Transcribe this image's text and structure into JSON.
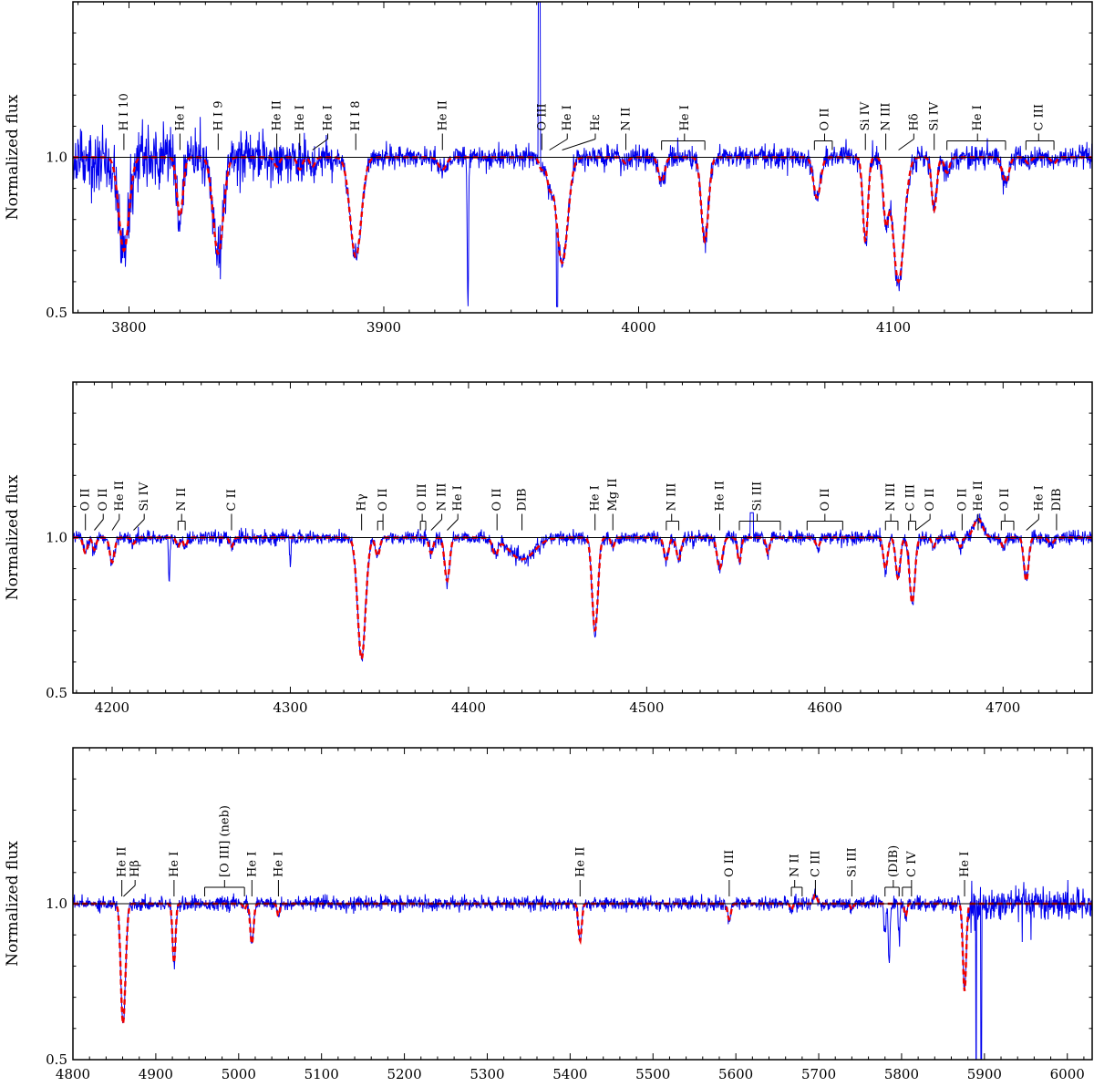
{
  "chart_data": [
    {
      "type": "line",
      "panel": "top",
      "xlim": [
        3778,
        4178
      ],
      "ylim": [
        0.5,
        1.5
      ],
      "xticks": [
        3800,
        3900,
        4000,
        4100
      ],
      "yticks": [
        0.5,
        1.0
      ],
      "ytick_labels": [
        "0.5",
        "1.0"
      ],
      "ylabel": "Normalized flux",
      "reference_line": 1.0,
      "grid": false,
      "series": [
        {
          "role": "observed",
          "color": "#0000ee",
          "style": "solid"
        },
        {
          "role": "model",
          "color": "#ee0000",
          "style": "dashed"
        }
      ],
      "lines": [
        {
          "center": 3798,
          "depth": 0.3,
          "width": 2.0,
          "lbl": "H I 10"
        },
        {
          "center": 3820,
          "depth": 0.19,
          "width": 1.2,
          "lbl": "He I"
        },
        {
          "center": 3835,
          "depth": 0.31,
          "width": 2.0,
          "lbl": "H I 9"
        },
        {
          "center": 3858,
          "depth": 0.03,
          "width": 1.0,
          "lbl": "He II"
        },
        {
          "center": 3867,
          "depth": 0.04,
          "width": 1.0,
          "lbl": "He I"
        },
        {
          "center": 3872,
          "depth": 0.03,
          "width": 1.0,
          "lbl": "He I"
        },
        {
          "center": 3889,
          "depth": 0.32,
          "width": 2.2,
          "lbl": "H I 8"
        },
        {
          "center": 3923,
          "depth": 0.04,
          "width": 1.5,
          "lbl": "He II"
        },
        {
          "center": 3933,
          "depth": 0.5,
          "width": 0.25,
          "obs_only": true
        },
        {
          "center": 3962,
          "depth": 0.04,
          "width": 1.0,
          "lbl": "O III"
        },
        {
          "center": 3965,
          "depth": 0.08,
          "width": 1.0,
          "lbl": "He I"
        },
        {
          "center": 3970,
          "depth": 0.34,
          "width": 2.2,
          "lbl": "Hε"
        },
        {
          "center": 3995,
          "depth": 0.02,
          "width": 1.0,
          "lbl": "N II"
        },
        {
          "center": 4009,
          "depth": 0.08,
          "width": 1.2
        },
        {
          "center": 4026,
          "depth": 0.27,
          "width": 1.4,
          "lbl": "He I"
        },
        {
          "center": 4070,
          "depth": 0.13,
          "width": 1.4,
          "lbl": "O II"
        },
        {
          "center": 4089,
          "depth": 0.27,
          "width": 1.0,
          "lbl": "Si IV"
        },
        {
          "center": 4097,
          "depth": 0.19,
          "width": 1.0,
          "lbl": "N III"
        },
        {
          "center": 4102,
          "depth": 0.4,
          "width": 2.2,
          "lbl": "Hδ"
        },
        {
          "center": 4116,
          "depth": 0.17,
          "width": 1.0,
          "lbl": "Si IV"
        },
        {
          "center": 4121,
          "depth": 0.05,
          "width": 1.0
        },
        {
          "center": 4144,
          "depth": 0.08,
          "width": 1.3,
          "lbl": "He I"
        },
        {
          "center": 4153,
          "depth": 0.02,
          "width": 1.0
        },
        {
          "center": 4163,
          "depth": 0.02,
          "width": 1.0,
          "lbl": "C III"
        }
      ],
      "spikes": [
        {
          "x": 3961,
          "y": 1.5,
          "w": 0.5
        },
        {
          "x": 3968,
          "y": 0.52,
          "w": 0.25
        }
      ],
      "labels": [
        {
          "text": "H I 10",
          "x": 3798,
          "tick": "straight"
        },
        {
          "text": "He I",
          "x": 3820,
          "tick": "straight"
        },
        {
          "text": "H I 9",
          "x": 3835,
          "tick": "straight"
        },
        {
          "text": "He II",
          "x": 3858,
          "tick": "straight"
        },
        {
          "text": "He I",
          "x": 3867,
          "tick": "straight"
        },
        {
          "text": "He I",
          "x": 3878,
          "tick": "slant",
          "target": 3872
        },
        {
          "text": "H I 8",
          "x": 3889,
          "tick": "straight"
        },
        {
          "text": "He II",
          "x": 3923,
          "tick": "straight"
        },
        {
          "text": "O III",
          "x": 3962,
          "tick": "straight"
        },
        {
          "text": "He I",
          "x": 3972,
          "tick": "slant",
          "target": 3965
        },
        {
          "text": "Hε",
          "x": 3983,
          "tick": "slant",
          "target": 3970
        },
        {
          "text": "N II",
          "x": 3995,
          "tick": "straight"
        },
        {
          "text": "He I",
          "x": 4018,
          "tick": "bracket",
          "positions": [
            4009,
            4026
          ]
        },
        {
          "text": "O II",
          "x": 4073,
          "tick": "bracket",
          "positions": [
            4069,
            4076
          ]
        },
        {
          "text": "Si IV",
          "x": 4089,
          "tick": "straight"
        },
        {
          "text": "N III",
          "x": 4097,
          "tick": "straight"
        },
        {
          "text": "Hδ",
          "x": 4108,
          "tick": "slant",
          "target": 4102
        },
        {
          "text": "Si IV",
          "x": 4116,
          "tick": "straight"
        },
        {
          "text": "He I",
          "x": 4133,
          "tick": "bracket",
          "positions": [
            4121,
            4144
          ]
        },
        {
          "text": "C III",
          "x": 4157,
          "tick": "bracket",
          "positions": [
            4152,
            4163
          ]
        }
      ]
    },
    {
      "type": "line",
      "panel": "middle",
      "xlim": [
        4178,
        4750
      ],
      "ylim": [
        0.5,
        1.5
      ],
      "xticks": [
        4200,
        4300,
        4400,
        4500,
        4600,
        4700
      ],
      "yticks": [
        0.5,
        1.0
      ],
      "ytick_labels": [
        "0.5",
        "1.0"
      ],
      "ylabel": "Normalized flux",
      "reference_line": 1.0,
      "grid": false,
      "series": [
        {
          "role": "observed",
          "color": "#0000ee",
          "style": "solid"
        },
        {
          "role": "model",
          "color": "#ee0000",
          "style": "dashed"
        }
      ],
      "lines": [
        {
          "center": 4185,
          "depth": 0.05,
          "width": 1.2,
          "lbl": "O II"
        },
        {
          "center": 4190,
          "depth": 0.04,
          "width": 1.0,
          "lbl": "O II"
        },
        {
          "center": 4200,
          "depth": 0.08,
          "width": 1.3,
          "lbl": "He II"
        },
        {
          "center": 4212,
          "depth": 0.02,
          "width": 1.0,
          "lbl": "Si IV"
        },
        {
          "center": 4232,
          "depth": 0.15,
          "width": 0.4,
          "obs_only": true
        },
        {
          "center": 4237,
          "depth": 0.03,
          "width": 1.0,
          "lbl": "N II"
        },
        {
          "center": 4241,
          "depth": 0.03,
          "width": 1.0
        },
        {
          "center": 4267,
          "depth": 0.03,
          "width": 1.0,
          "lbl": "C II"
        },
        {
          "center": 4300,
          "depth": 0.08,
          "width": 0.4,
          "obs_only": true
        },
        {
          "center": 4340,
          "depth": 0.39,
          "width": 2.2,
          "lbl": "Hγ"
        },
        {
          "center": 4349,
          "depth": 0.06,
          "width": 1.2,
          "lbl": "O II"
        },
        {
          "center": 4379,
          "depth": 0.05,
          "width": 1.2,
          "lbl": "N III"
        },
        {
          "center": 4388,
          "depth": 0.14,
          "width": 1.4,
          "lbl": "He I"
        },
        {
          "center": 4415,
          "depth": 0.05,
          "width": 1.5,
          "lbl": "O II"
        },
        {
          "center": 4430,
          "depth": 0.07,
          "width": 7.0,
          "lbl": "DIB"
        },
        {
          "center": 4471,
          "depth": 0.3,
          "width": 1.6,
          "lbl": "He I"
        },
        {
          "center": 4481,
          "depth": 0.03,
          "width": 1.0,
          "lbl": "Mg II"
        },
        {
          "center": 4511,
          "depth": 0.07,
          "width": 1.3,
          "lbl": "N III"
        },
        {
          "center": 4518,
          "depth": 0.07,
          "width": 1.3
        },
        {
          "center": 4541,
          "depth": 0.1,
          "width": 1.5,
          "lbl": "He II"
        },
        {
          "center": 4552,
          "depth": 0.08,
          "width": 1.0,
          "lbl": "Si III"
        },
        {
          "center": 4568,
          "depth": 0.05,
          "width": 1.0
        },
        {
          "center": 4596,
          "depth": 0.03,
          "width": 1.2,
          "lbl": "O II"
        },
        {
          "center": 4634,
          "depth": 0.1,
          "width": 1.2,
          "lbl": "N III"
        },
        {
          "center": 4641,
          "depth": 0.13,
          "width": 1.3
        },
        {
          "center": 4649,
          "depth": 0.21,
          "width": 1.5,
          "lbl": "C III"
        },
        {
          "center": 4661,
          "depth": 0.03,
          "width": 1.0,
          "lbl": "O II"
        },
        {
          "center": 4676,
          "depth": 0.03,
          "width": 1.0,
          "lbl": "O II"
        },
        {
          "center": 4686,
          "depth": -0.06,
          "width": 2.5,
          "lbl": "He II"
        },
        {
          "center": 4700,
          "depth": 0.03,
          "width": 1.0,
          "lbl": "O II"
        },
        {
          "center": 4713,
          "depth": 0.14,
          "width": 1.3,
          "lbl": "He I"
        },
        {
          "center": 4727,
          "depth": 0.02,
          "width": 1.5,
          "lbl": "DIB"
        }
      ],
      "spikes": [
        {
          "x": 4559,
          "y": 1.08,
          "w": 1.0
        }
      ],
      "labels": [
        {
          "text": "O II",
          "x": 4185,
          "tick": "straight"
        },
        {
          "text": "O II",
          "x": 4195,
          "tick": "slant",
          "target": 4190
        },
        {
          "text": "He II",
          "x": 4204,
          "tick": "slant",
          "target": 4200
        },
        {
          "text": "Si IV",
          "x": 4218,
          "tick": "slant",
          "target": 4212
        },
        {
          "text": "N II",
          "x": 4239,
          "tick": "bracket",
          "positions": [
            4237,
            4241
          ]
        },
        {
          "text": "C II",
          "x": 4267,
          "tick": "straight"
        },
        {
          "text": "Hγ",
          "x": 4340,
          "tick": "straight"
        },
        {
          "text": "O II",
          "x": 4352,
          "tick": "bracket",
          "positions": [
            4349,
            4352
          ]
        },
        {
          "text": "O III",
          "x": 4374,
          "tick": "bracket",
          "positions": [
            4373,
            4376
          ]
        },
        {
          "text": "N III",
          "x": 4385,
          "tick": "slant",
          "target": 4379
        },
        {
          "text": "He I",
          "x": 4394,
          "tick": "slant",
          "target": 4388
        },
        {
          "text": "O II",
          "x": 4416,
          "tick": "straight"
        },
        {
          "text": "DIB",
          "x": 4430,
          "tick": "straight"
        },
        {
          "text": "He I",
          "x": 4471,
          "tick": "straight"
        },
        {
          "text": "Mg II",
          "x": 4481,
          "tick": "straight"
        },
        {
          "text": "N III",
          "x": 4514,
          "tick": "bracket",
          "positions": [
            4511,
            4518
          ]
        },
        {
          "text": "He II",
          "x": 4541,
          "tick": "straight"
        },
        {
          "text": "Si III",
          "x": 4562,
          "tick": "bracket",
          "positions": [
            4552,
            4575
          ]
        },
        {
          "text": "O II",
          "x": 4600,
          "tick": "bracket",
          "positions": [
            4590,
            4610
          ]
        },
        {
          "text": "N III",
          "x": 4637,
          "tick": "bracket",
          "positions": [
            4634,
            4641
          ]
        },
        {
          "text": "C III",
          "x": 4648,
          "tick": "bracket",
          "positions": [
            4647,
            4651
          ]
        },
        {
          "text": "O II",
          "x": 4659,
          "tick": "slant",
          "target": 4651
        },
        {
          "text": "O II",
          "x": 4677,
          "tick": "straight"
        },
        {
          "text": "He II",
          "x": 4686,
          "tick": "straight"
        },
        {
          "text": "O II",
          "x": 4701,
          "tick": "bracket",
          "positions": [
            4699,
            4706
          ]
        },
        {
          "text": "He I",
          "x": 4720,
          "tick": "slant",
          "target": 4713
        },
        {
          "text": "DIB",
          "x": 4730,
          "tick": "straight"
        }
      ]
    },
    {
      "type": "line",
      "panel": "bottom",
      "xlim": [
        4800,
        6030
      ],
      "ylim": [
        0.5,
        1.5
      ],
      "xticks": [
        4800,
        4900,
        5000,
        5100,
        5200,
        5300,
        5400,
        5500,
        5600,
        5700,
        5800,
        5900,
        6000
      ],
      "yticks": [
        0.5,
        1.0
      ],
      "ytick_labels": [
        "0.5",
        "1.0"
      ],
      "ylabel": "Normalized flux",
      "reference_line": 1.0,
      "grid": false,
      "series": [
        {
          "role": "observed",
          "color": "#0000ee",
          "style": "solid"
        },
        {
          "role": "model",
          "color": "#ee0000",
          "style": "dashed"
        }
      ],
      "lines": [
        {
          "center": 4859,
          "depth": 0.08,
          "width": 2.0,
          "lbl": "He II"
        },
        {
          "center": 4861,
          "depth": 0.33,
          "width": 2.8,
          "lbl": "Hβ"
        },
        {
          "center": 4922,
          "depth": 0.19,
          "width": 1.8,
          "lbl": "He I"
        },
        {
          "center": 5007,
          "depth": 0.02,
          "width": 1.5,
          "model_only": true
        },
        {
          "center": 5016,
          "depth": 0.13,
          "width": 2.0,
          "lbl": "He I"
        },
        {
          "center": 5048,
          "depth": 0.04,
          "width": 1.5,
          "lbl": "He I"
        },
        {
          "center": 5412,
          "depth": 0.12,
          "width": 2.0,
          "lbl": "He II"
        },
        {
          "center": 5592,
          "depth": 0.05,
          "width": 2.0,
          "lbl": "O III"
        },
        {
          "center": 5667,
          "depth": 0.02,
          "width": 1.5,
          "lbl": "N II"
        },
        {
          "center": 5696,
          "depth": -0.03,
          "width": 2.0,
          "lbl": "C III"
        },
        {
          "center": 5740,
          "depth": 0.02,
          "width": 1.5,
          "lbl": "Si III"
        },
        {
          "center": 5780,
          "depth": 0.1,
          "width": 1.2,
          "obs_only": true
        },
        {
          "center": 5785,
          "depth": 0.2,
          "width": 1.0,
          "obs_only": true
        },
        {
          "center": 5797,
          "depth": 0.1,
          "width": 1.0,
          "obs_only": true
        },
        {
          "center": 5805,
          "depth": 0.04,
          "width": 1.5,
          "lbl": "C IV"
        },
        {
          "center": 5876,
          "depth": 0.28,
          "width": 2.0,
          "lbl": "He I"
        }
      ],
      "spikes": [
        {
          "x": 5890,
          "y": 0.5,
          "w": 0.6
        },
        {
          "x": 5896,
          "y": 0.5,
          "w": 0.6
        }
      ],
      "labels": [
        {
          "text": "He II",
          "x": 4859,
          "tick": "straight"
        },
        {
          "text": "Hβ",
          "x": 4875,
          "tick": "slant",
          "target": 4861
        },
        {
          "text": "He I",
          "x": 4922,
          "tick": "straight"
        },
        {
          "text": "[O III] (neb)",
          "x": 4983,
          "tick": "bracket",
          "positions": [
            4959,
            5007
          ]
        },
        {
          "text": "He I",
          "x": 5016,
          "tick": "straight"
        },
        {
          "text": "He I",
          "x": 5048,
          "tick": "straight"
        },
        {
          "text": "He II",
          "x": 5412,
          "tick": "straight"
        },
        {
          "text": "O III",
          "x": 5592,
          "tick": "straight"
        },
        {
          "text": "N II",
          "x": 5671,
          "tick": "bracket",
          "positions": [
            5667,
            5680
          ]
        },
        {
          "text": "C III",
          "x": 5696,
          "tick": "straight"
        },
        {
          "text": "Si III",
          "x": 5740,
          "tick": "straight"
        },
        {
          "text": "(DIB)",
          "x": 5790,
          "tick": "bracket",
          "positions": [
            5780,
            5797
          ]
        },
        {
          "text": "C IV",
          "x": 5812,
          "tick": "bracket",
          "positions": [
            5801,
            5812
          ]
        },
        {
          "text": "He I",
          "x": 5876,
          "tick": "straight"
        }
      ]
    }
  ]
}
